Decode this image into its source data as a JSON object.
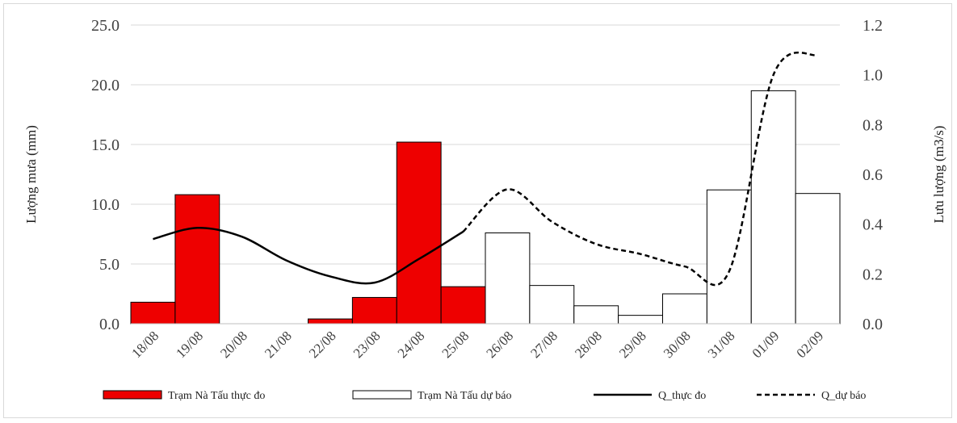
{
  "chart_data": {
    "type": "bar",
    "categories": [
      "18/08",
      "19/08",
      "20/08",
      "21/08",
      "22/08",
      "23/08",
      "24/08",
      "25/08",
      "26/08",
      "27/08",
      "28/08",
      "29/08",
      "30/08",
      "31/08",
      "01/09",
      "02/09"
    ],
    "series": [
      {
        "name": "Trạm Nà Tấu thực đo",
        "kind": "bar",
        "axis": "left",
        "color": "#ee0000",
        "values": [
          1.8,
          10.8,
          null,
          null,
          0.4,
          2.2,
          15.2,
          3.1,
          null,
          null,
          null,
          null,
          null,
          null,
          null,
          null
        ]
      },
      {
        "name": "Trạm Nà Tấu dự báo",
        "kind": "bar",
        "axis": "left",
        "color": "#ffffff",
        "values": [
          null,
          null,
          null,
          null,
          null,
          null,
          null,
          null,
          7.6,
          3.2,
          1.5,
          0.7,
          2.5,
          11.2,
          19.5,
          10.9
        ]
      },
      {
        "name": "Q_thực đo",
        "kind": "line",
        "axis": "right",
        "style": "solid",
        "color": "#000000",
        "values": [
          0.34,
          0.385,
          0.35,
          0.255,
          0.19,
          0.165,
          0.26,
          0.37,
          null,
          null,
          null,
          null,
          null,
          null,
          null,
          null
        ]
      },
      {
        "name": "Q_dự báo",
        "kind": "line",
        "axis": "right",
        "style": "dashed",
        "color": "#000000",
        "values": [
          null,
          null,
          null,
          null,
          null,
          null,
          null,
          0.37,
          0.54,
          0.41,
          0.32,
          0.28,
          0.23,
          0.21,
          1.0,
          1.08
        ]
      }
    ],
    "ylabel": "Lượng mưa (mm)",
    "ylabel_right": "Lưu lượng (m3/s)",
    "ylim": [
      0,
      25
    ],
    "ylim_right": [
      0,
      1.2
    ],
    "yticks": [
      "0.0",
      "5.0",
      "10.0",
      "15.0",
      "20.0",
      "25.0"
    ],
    "yticks_right": [
      "0.0",
      "0.2",
      "0.4",
      "0.6",
      "0.8",
      "1.0",
      "1.2"
    ],
    "grid": true,
    "legend_placement": "bottom"
  }
}
